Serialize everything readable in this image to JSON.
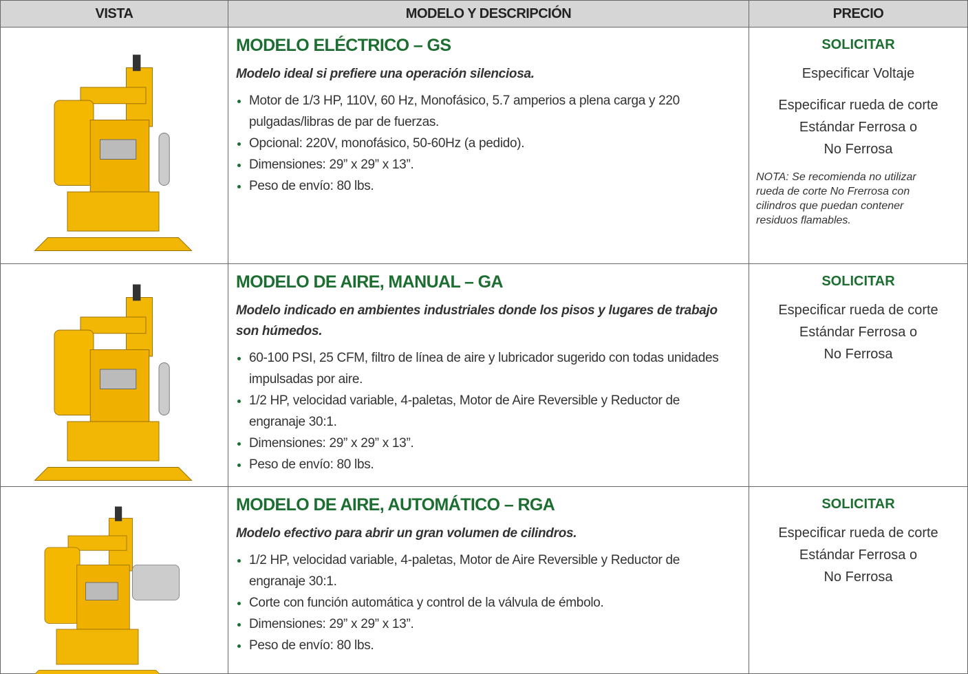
{
  "table": {
    "headers": [
      "VISTA",
      "MODELO Y DESCRIPCIÓN",
      "PRECIO"
    ],
    "rows": [
      {
        "title": "MODELO ELÉCTRICO – GS",
        "subtitle": "Modelo ideal si prefiere una operación silenciosa.",
        "bullets": [
          "Motor de 1/3 HP, 110V, 60 Hz, Monofásico, 5.7 amperios a plena carga y 220 pulgadas/libras de par de fuerzas.",
          "Opcional: 220V, monofásico, 50-60Hz (a pedido).",
          "Dimensiones: 29” x 29” x 13”.",
          "Peso de envío: 80 lbs."
        ],
        "price": "SOLICITAR",
        "notes": [
          [
            "Especificar Voltaje"
          ],
          [
            "Especificar rueda de corte",
            "Estándar Ferrosa o",
            "No Ferrosa"
          ]
        ],
        "note": "NOTA: Se recomienda no utilizar rueda de corte No Frerrosa con cilindros que puedan contener residuos flamables."
      },
      {
        "title": "MODELO DE AIRE, MANUAL – GA",
        "subtitle": "Modelo indicado en ambientes industriales donde los pisos y lugares de trabajo son húmedos.",
        "bullets": [
          "60-100 PSI, 25 CFM, filtro de línea de aire y lubricador sugerido con todas unidades impulsadas por aire.",
          "1/2 HP, velocidad variable, 4-paletas, Motor de Aire Reversible y Reductor de engranaje 30:1.",
          "Dimensiones: 29” x 29” x 13”.",
          "Peso de envío: 80 lbs."
        ],
        "price": "SOLICITAR",
        "notes": [
          [
            "Especificar rueda de corte",
            "Estándar Ferrosa o",
            "No Ferrosa"
          ]
        ]
      },
      {
        "title": "MODELO DE AIRE, AUTOMÁTICO – RGA",
        "subtitle": "Modelo efectivo para abrir un gran volumen de cilindros.",
        "bullets": [
          "1/2 HP, velocidad variable, 4-paletas, Motor de Aire Reversible y Reductor de engranaje 30:1.",
          "Corte con función automática y control de la válvula de émbolo.",
          "Dimensiones: 29” x 29” x 13”.",
          "Peso de envío: 80 lbs."
        ],
        "price": "SOLICITAR",
        "notes": [
          [
            "Especificar rueda de corte",
            "Estándar Ferrosa o",
            "No Ferrosa"
          ]
        ]
      }
    ]
  }
}
